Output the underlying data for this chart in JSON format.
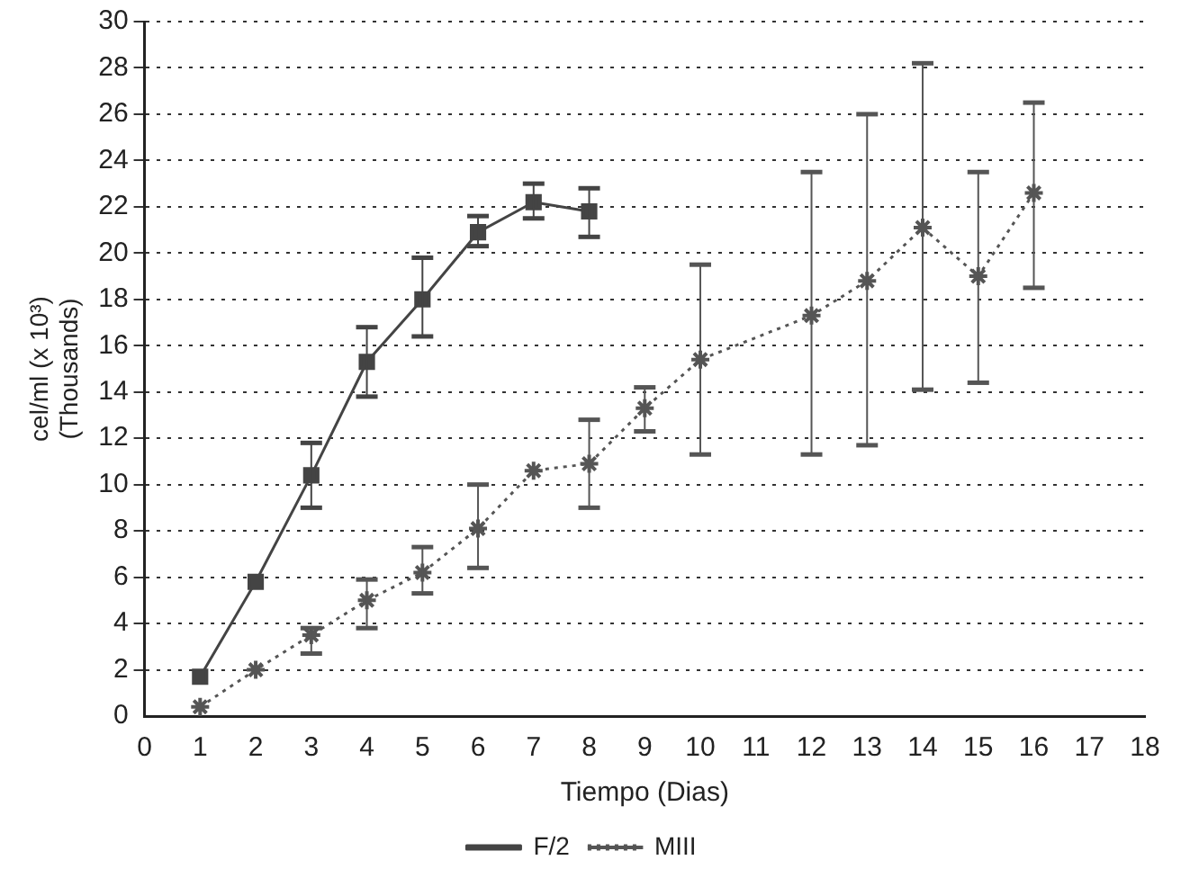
{
  "chart_data": {
    "type": "line",
    "xlabel": "Tiempo (Dias)",
    "ylabel": "cel/ml (x 10³)\n(Thousands)",
    "xlim": [
      0,
      18
    ],
    "xticks": [
      0,
      1,
      2,
      3,
      4,
      5,
      6,
      7,
      8,
      9,
      10,
      11,
      12,
      13,
      14,
      15,
      16,
      17,
      18
    ],
    "ylim": [
      0,
      30
    ],
    "yticks": [
      0,
      2,
      4,
      6,
      8,
      10,
      12,
      14,
      16,
      18,
      20,
      22,
      24,
      26,
      28,
      30
    ],
    "grid": "y",
    "legend": "bottom",
    "series": [
      {
        "name": "F/2",
        "color": "#444444",
        "marker": "square",
        "line_style": "solid",
        "x": [
          1,
          2,
          3,
          4,
          5,
          6,
          7,
          8
        ],
        "values": [
          1.7,
          5.8,
          10.4,
          15.3,
          18,
          20.9,
          22.2,
          21.8
        ],
        "errors": [
          null,
          null,
          [
            9,
            11.8
          ],
          [
            13.8,
            16.8
          ],
          [
            16.4,
            19.8
          ],
          [
            20.3,
            21.6
          ],
          [
            21.5,
            23
          ],
          [
            20.7,
            22.8
          ]
        ]
      },
      {
        "name": "MIII",
        "color": "#555555",
        "marker": "cross",
        "line_style": "dotted",
        "x": [
          1,
          2,
          3,
          4,
          5,
          6,
          7,
          8,
          9,
          10,
          12,
          13,
          14,
          15,
          16
        ],
        "values": [
          0.4,
          2,
          3.5,
          5,
          6.2,
          8.1,
          10.6,
          10.9,
          13.3,
          15.4,
          17.3,
          18.8,
          21.1,
          19,
          22.6
        ],
        "errors": [
          null,
          null,
          [
            2.7,
            3.8
          ],
          [
            3.8,
            5.9
          ],
          [
            5.3,
            7.3
          ],
          [
            6.4,
            10
          ],
          null,
          [
            9,
            12.8
          ],
          [
            12.3,
            14.2
          ],
          [
            11.3,
            19.5
          ],
          [
            11.3,
            23.5
          ],
          [
            11.7,
            26
          ],
          [
            14.1,
            28.2
          ],
          [
            14.4,
            23.5
          ],
          [
            18.5,
            26.5
          ]
        ]
      }
    ]
  }
}
